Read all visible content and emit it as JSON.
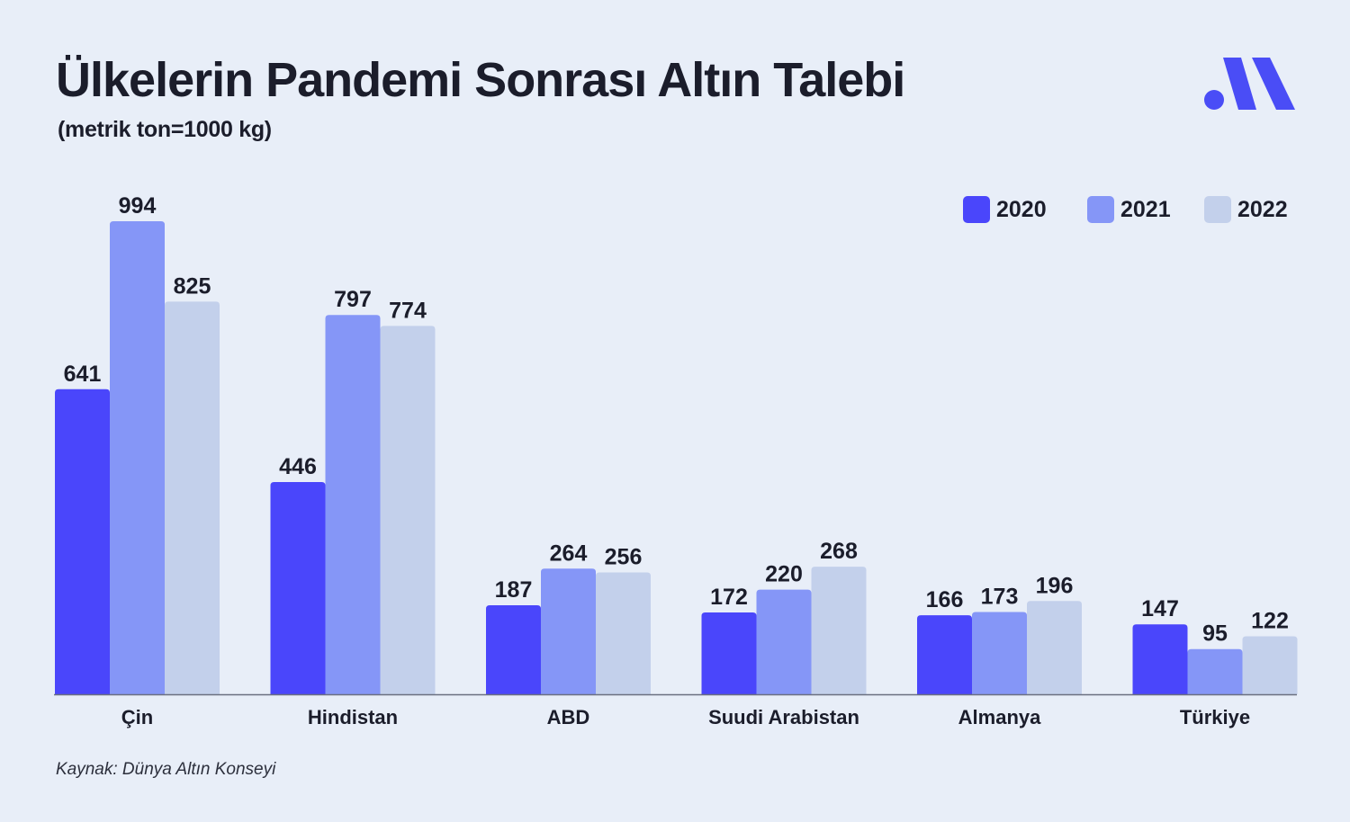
{
  "header": {
    "title": "Ülkelerin Pandemi Sonrası Altın Talebi",
    "subtitle": "(metrik ton=1000 kg)"
  },
  "logo": {
    "icon": "brand-logo-icon",
    "color": "#4a4df6"
  },
  "source": "Kaynak: Dünya Altın Konseyi",
  "chart_data": {
    "type": "bar",
    "title": "Ülkelerin Pandemi Sonrası Altın Talebi",
    "subtitle": "(metrik ton=1000 kg)",
    "xlabel": "",
    "ylabel": "",
    "categories": [
      "Çin",
      "Hindistan",
      "ABD",
      "Suudi Arabistan",
      "Almanya",
      "Türkiye"
    ],
    "series": [
      {
        "name": "2020",
        "color": "#4a46fb",
        "values": [
          641,
          446,
          187,
          172,
          166,
          147
        ]
      },
      {
        "name": "2021",
        "color": "#8596f7",
        "values": [
          994,
          797,
          264,
          220,
          173,
          95
        ]
      },
      {
        "name": "2022",
        "color": "#c3d0eb",
        "values": [
          825,
          774,
          256,
          268,
          196,
          122
        ]
      }
    ],
    "ylim": [
      0,
      994
    ],
    "grid": false,
    "legend": "top-right",
    "data_labels": true
  }
}
